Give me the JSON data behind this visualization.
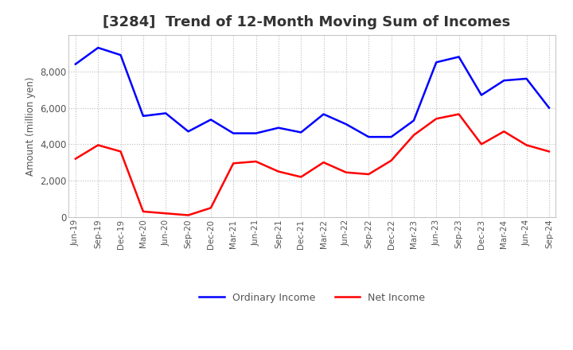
{
  "title": "[3284]  Trend of 12-Month Moving Sum of Incomes",
  "ylabel": "Amount (million yen)",
  "xlabels": [
    "Jun-19",
    "Sep-19",
    "Dec-19",
    "Mar-20",
    "Jun-20",
    "Sep-20",
    "Dec-20",
    "Mar-21",
    "Jun-21",
    "Sep-21",
    "Dec-21",
    "Mar-22",
    "Jun-22",
    "Sep-22",
    "Dec-22",
    "Mar-23",
    "Jun-23",
    "Sep-23",
    "Dec-23",
    "Mar-24",
    "Jun-24",
    "Sep-24"
  ],
  "ordinary_income": [
    8400,
    9300,
    8900,
    5550,
    5700,
    4700,
    5350,
    4600,
    4600,
    4900,
    4650,
    5650,
    5100,
    4400,
    4400,
    5300,
    8500,
    8800,
    6700,
    7500,
    7600,
    6000
  ],
  "net_income": [
    3200,
    3950,
    3600,
    300,
    200,
    100,
    500,
    2950,
    3050,
    2500,
    2200,
    3000,
    2450,
    2350,
    3100,
    4500,
    5400,
    5650,
    4000,
    4700,
    3950,
    3600
  ],
  "ylim": [
    0,
    10000
  ],
  "yticks": [
    0,
    2000,
    4000,
    6000,
    8000
  ],
  "ordinary_color": "#0000ff",
  "net_color": "#ff0000",
  "background_color": "#ffffff",
  "grid_color": "#bbbbbb",
  "title_fontsize": 13,
  "title_color": "#333333",
  "tick_color": "#555555",
  "legend_labels": [
    "Ordinary Income",
    "Net Income"
  ]
}
